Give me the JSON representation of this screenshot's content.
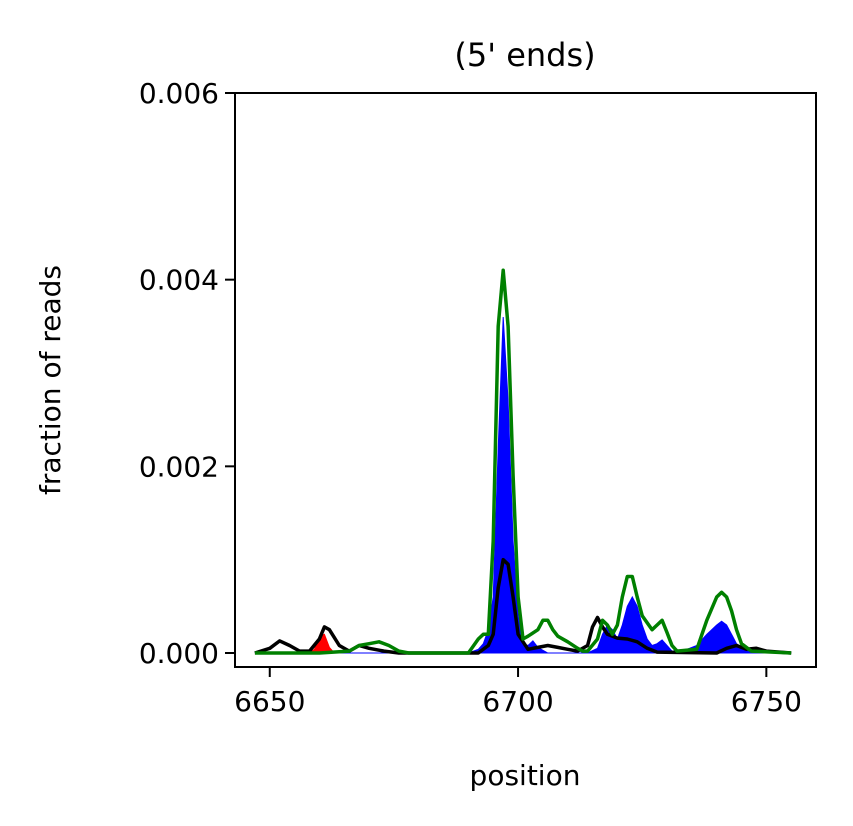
{
  "chart_data": {
    "type": "line",
    "title": "(5' ends)",
    "xlabel": "position",
    "ylabel": "fraction of reads",
    "xlim": [
      6643,
      6760
    ],
    "ylim": [
      -0.00015,
      0.006
    ],
    "xticks": [
      6650,
      6700,
      6750
    ],
    "xtick_labels": [
      "6650",
      "6700",
      "6750"
    ],
    "yticks": [
      0.0,
      0.002,
      0.004,
      0.006
    ],
    "ytick_labels": [
      "0.000",
      "0.002",
      "0.004",
      "0.006"
    ],
    "grid": false,
    "legend": "none",
    "series": [
      {
        "style": "filled-area",
        "color": "#ff0000",
        "points": [
          [
            6647,
            0
          ],
          [
            6658,
            0
          ],
          [
            6659,
            4e-05
          ],
          [
            6660,
            0.00018
          ],
          [
            6661,
            0.0002
          ],
          [
            6662,
            6e-05
          ],
          [
            6663,
            0
          ],
          [
            6755,
            0
          ]
        ]
      },
      {
        "style": "filled-area",
        "color": "#0000ff",
        "points": [
          [
            6647,
            0
          ],
          [
            6690,
            0
          ],
          [
            6692,
            4e-05
          ],
          [
            6693,
            0.0001
          ],
          [
            6694,
            0.00025
          ],
          [
            6695,
            0.0006
          ],
          [
            6696,
            0.0022
          ],
          [
            6697,
            0.0036
          ],
          [
            6698,
            0.0027
          ],
          [
            6699,
            0.0012
          ],
          [
            6700,
            0.0004
          ],
          [
            6701,
            0.0001
          ],
          [
            6702,
            8e-05
          ],
          [
            6703,
            0.00013
          ],
          [
            6704,
            6e-05
          ],
          [
            6706,
            0.0
          ],
          [
            6714,
            0
          ],
          [
            6716,
            5e-05
          ],
          [
            6717,
            0.0002
          ],
          [
            6718,
            0.0003
          ],
          [
            6719,
            0.00025
          ],
          [
            6720,
            0.00015
          ],
          [
            6721,
            0.0003
          ],
          [
            6722,
            0.0005
          ],
          [
            6723,
            0.0006
          ],
          [
            6724,
            0.0005
          ],
          [
            6725,
            0.0003
          ],
          [
            6726,
            0.00015
          ],
          [
            6727,
            8e-05
          ],
          [
            6728,
            0.0001
          ],
          [
            6729,
            0.00014
          ],
          [
            6730,
            8e-05
          ],
          [
            6731,
            2e-05
          ],
          [
            6734,
            4e-05
          ],
          [
            6736,
            8e-05
          ],
          [
            6738,
            0.0002
          ],
          [
            6740,
            0.0003
          ],
          [
            6741,
            0.00034
          ],
          [
            6742,
            0.0003
          ],
          [
            6743,
            0.0002
          ],
          [
            6744,
            0.0001
          ],
          [
            6746,
            2e-05
          ],
          [
            6748,
            0
          ],
          [
            6755,
            0
          ]
        ]
      },
      {
        "style": "line",
        "color": "#000000",
        "points": [
          [
            6647,
            0
          ],
          [
            6650,
            5e-05
          ],
          [
            6652,
            0.00013
          ],
          [
            6654,
            8e-05
          ],
          [
            6656,
            2e-05
          ],
          [
            6658,
            2e-05
          ],
          [
            6660,
            0.00015
          ],
          [
            6661,
            0.00028
          ],
          [
            6662,
            0.00025
          ],
          [
            6664,
            8e-05
          ],
          [
            6666,
            2e-05
          ],
          [
            6668,
            8e-05
          ],
          [
            6670,
            5e-05
          ],
          [
            6673,
            2e-05
          ],
          [
            6676,
            0
          ],
          [
            6692,
            0
          ],
          [
            6694,
            8e-05
          ],
          [
            6695,
            0.0002
          ],
          [
            6696,
            0.0007
          ],
          [
            6697,
            0.001
          ],
          [
            6698,
            0.00095
          ],
          [
            6699,
            0.0006
          ],
          [
            6700,
            0.0002
          ],
          [
            6702,
            4e-05
          ],
          [
            6704,
            6e-05
          ],
          [
            6706,
            8e-05
          ],
          [
            6708,
            6e-05
          ],
          [
            6710,
            4e-05
          ],
          [
            6712,
            2e-05
          ],
          [
            6714,
            8e-05
          ],
          [
            6715,
            0.00028
          ],
          [
            6716,
            0.00038
          ],
          [
            6717,
            0.00028
          ],
          [
            6718,
            0.0002
          ],
          [
            6720,
            0.00016
          ],
          [
            6722,
            0.00015
          ],
          [
            6724,
            0.00012
          ],
          [
            6726,
            5e-05
          ],
          [
            6728,
            1e-05
          ],
          [
            6740,
            0
          ],
          [
            6742,
            5e-05
          ],
          [
            6744,
            8e-05
          ],
          [
            6746,
            4e-05
          ],
          [
            6748,
            5e-05
          ],
          [
            6750,
            2e-05
          ],
          [
            6755,
            0
          ]
        ]
      },
      {
        "style": "line",
        "color": "#008000",
        "points": [
          [
            6647,
            0
          ],
          [
            6660,
            0
          ],
          [
            6666,
            2e-05
          ],
          [
            6668,
            8e-05
          ],
          [
            6670,
            0.0001
          ],
          [
            6672,
            0.00012
          ],
          [
            6674,
            8e-05
          ],
          [
            6676,
            2e-05
          ],
          [
            6678,
            0
          ],
          [
            6690,
            0
          ],
          [
            6692,
            0.00015
          ],
          [
            6693,
            0.0002
          ],
          [
            6694,
            0.0002
          ],
          [
            6695,
            0.0012
          ],
          [
            6696,
            0.0035
          ],
          [
            6697,
            0.0041
          ],
          [
            6698,
            0.0035
          ],
          [
            6699,
            0.0019
          ],
          [
            6700,
            0.0006
          ],
          [
            6701,
            0.00015
          ],
          [
            6702,
            0.00018
          ],
          [
            6704,
            0.00025
          ],
          [
            6705,
            0.00035
          ],
          [
            6706,
            0.00035
          ],
          [
            6707,
            0.00025
          ],
          [
            6708,
            0.00018
          ],
          [
            6710,
            0.00012
          ],
          [
            6712,
            5e-05
          ],
          [
            6713,
            2e-05
          ],
          [
            6714,
            2e-05
          ],
          [
            6716,
            0.00015
          ],
          [
            6717,
            0.00035
          ],
          [
            6718,
            0.0003
          ],
          [
            6719,
            0.0002
          ],
          [
            6720,
            0.0003
          ],
          [
            6721,
            0.0006
          ],
          [
            6722,
            0.00082
          ],
          [
            6723,
            0.00082
          ],
          [
            6724,
            0.0006
          ],
          [
            6725,
            0.0004
          ],
          [
            6727,
            0.00025
          ],
          [
            6728,
            0.0003
          ],
          [
            6729,
            0.00035
          ],
          [
            6730,
            0.00022
          ],
          [
            6731,
            8e-05
          ],
          [
            6732,
            2e-05
          ],
          [
            6736,
            4e-05
          ],
          [
            6738,
            0.00035
          ],
          [
            6740,
            0.0006
          ],
          [
            6741,
            0.00065
          ],
          [
            6742,
            0.0006
          ],
          [
            6743,
            0.00045
          ],
          [
            6744,
            0.00025
          ],
          [
            6745,
            0.0001
          ],
          [
            6747,
            2e-05
          ],
          [
            6755,
            0
          ]
        ]
      }
    ]
  }
}
